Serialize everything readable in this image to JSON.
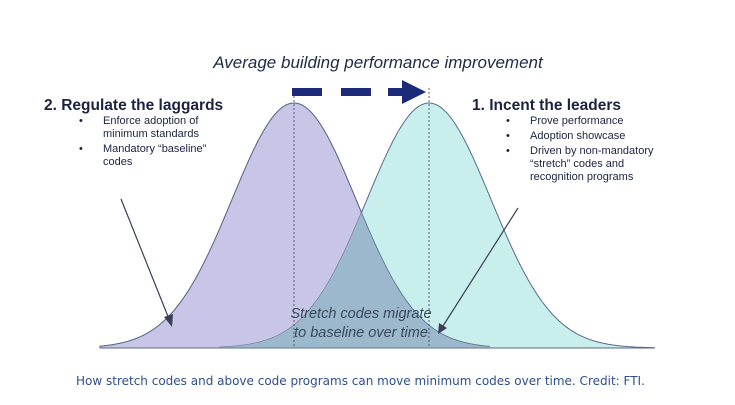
{
  "diagram": {
    "title": "Average building performance improvement",
    "left_block": {
      "heading": "2.  Regulate the laggards",
      "bullets": [
        [
          "Enforce adoption of",
          "minimum  standards"
        ],
        [
          "Mandatory “baseline”",
          "codes"
        ]
      ]
    },
    "right_block": {
      "heading": "1.  Incent the leaders",
      "bullets": [
        [
          "Prove performance"
        ],
        [
          "Adoption showcase"
        ],
        [
          "Driven by non-mandatory",
          "“stretch” codes and",
          "recognition programs"
        ]
      ]
    },
    "overlap_label": [
      "Stretch codes migrate",
      "to baseline over time"
    ],
    "colors": {
      "left_curve_fill": "#c9c5e6",
      "right_curve_fill": "#c8efec",
      "overlap_fill": "#9bb8cc",
      "arrow_color": "#1c2a7a",
      "curve_stroke": "#5a6a8c"
    }
  },
  "caption": "How stretch codes and above code programs can move minimum codes over time. Credit: FTI."
}
